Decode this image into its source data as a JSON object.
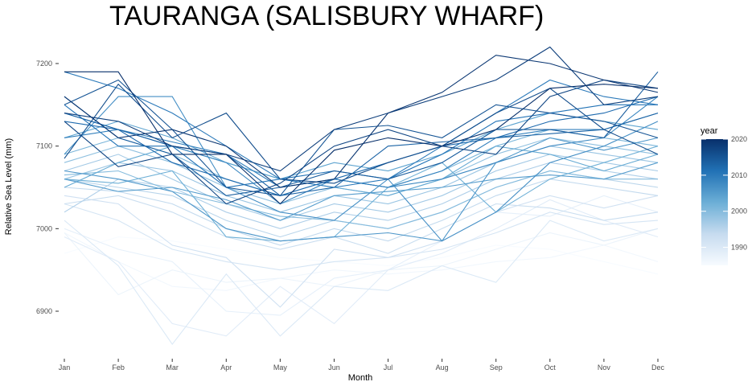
{
  "chart_data": {
    "type": "line",
    "title": "TAURANGA (SALISBURY WHARF)",
    "xlabel": "Month",
    "ylabel": "Relative Sea Level (mm)",
    "categories": [
      "Jan",
      "Feb",
      "Mar",
      "Apr",
      "May",
      "Jun",
      "Jul",
      "Aug",
      "Sep",
      "Oct",
      "Nov",
      "Dec"
    ],
    "ylim": [
      6845,
      7220
    ],
    "yticks": [
      6900,
      7000,
      7100,
      7200
    ],
    "grid": false,
    "legend": {
      "title": "year",
      "position": "right",
      "type": "colorbar",
      "range": [
        1985,
        2020
      ],
      "ticks": [
        1990,
        2000,
        2010,
        2020
      ],
      "colors": [
        "#f7fbff",
        "#c6dbef",
        "#6baed6",
        "#2171b5",
        "#08306b"
      ]
    },
    "series": [
      {
        "year": 1985,
        "values": [
          6970,
          6990,
          6985,
          6975,
          6965,
          6960,
          6955,
          6965,
          6980,
          6975,
          6960,
          6945
        ]
      },
      {
        "year": 1986,
        "values": [
          6995,
          6960,
          6930,
          6925,
          6940,
          6950,
          6945,
          6950,
          6960,
          6965,
          6980,
          6960
        ]
      },
      {
        "year": 1987,
        "values": [
          6995,
          6920,
          6950,
          6935,
          6940,
          6930,
          6950,
          6955,
          6975,
          6995,
          6980,
          7000
        ]
      },
      {
        "year": 1988,
        "values": [
          7000,
          6975,
          6960,
          6900,
          6895,
          6940,
          6950,
          6985,
          7020,
          7015,
          7040,
          7020
        ]
      },
      {
        "year": 1989,
        "values": [
          6990,
          6960,
          6885,
          6870,
          6930,
          6885,
          6950,
          6970,
          7000,
          7035,
          7010,
          6990
        ]
      },
      {
        "year": 1990,
        "values": [
          7010,
          6955,
          6860,
          6945,
          6870,
          6930,
          6925,
          6955,
          6935,
          7010,
          6985,
          7000
        ]
      },
      {
        "year": 1991,
        "values": [
          7030,
          7010,
          6975,
          6960,
          6950,
          6960,
          6965,
          6975,
          6995,
          7020,
          7005,
          7010
        ]
      },
      {
        "year": 1992,
        "values": [
          7040,
          7030,
          6980,
          6965,
          6905,
          6975,
          6965,
          6985,
          7020,
          7040,
          7025,
          7040
        ]
      },
      {
        "year": 1993,
        "values": [
          7030,
          7040,
          7020,
          6990,
          6975,
          6990,
          6970,
          7000,
          7030,
          7025,
          7010,
          7020
        ]
      },
      {
        "year": 1994,
        "values": [
          7050,
          7045,
          7030,
          7000,
          6980,
          7000,
          6985,
          7010,
          7040,
          7060,
          7050,
          7040
        ]
      },
      {
        "year": 1995,
        "values": [
          7060,
          7050,
          7040,
          7010,
          6990,
          7010,
          7000,
          7020,
          7050,
          7070,
          7060,
          7050
        ]
      },
      {
        "year": 1996,
        "values": [
          7020,
          7060,
          7050,
          7020,
          7000,
          7020,
          7010,
          7030,
          7060,
          7080,
          7070,
          7060
        ]
      },
      {
        "year": 1997,
        "values": [
          7070,
          7090,
          7060,
          7030,
          7010,
          7030,
          7020,
          7040,
          7070,
          7090,
          7080,
          7070
        ]
      },
      {
        "year": 1998,
        "values": [
          7060,
          7080,
          7070,
          7040,
          7020,
          7040,
          7030,
          7050,
          7080,
          7100,
          7090,
          7080
        ]
      },
      {
        "year": 1999,
        "values": [
          7080,
          7100,
          7080,
          7050,
          7030,
          7050,
          7040,
          7060,
          7090,
          7110,
          7100,
          7090
        ]
      },
      {
        "year": 2000,
        "values": [
          7065,
          7070,
          7045,
          7030,
          7015,
          7010,
          7000,
          7020,
          7050,
          7070,
          7060,
          7060
        ]
      },
      {
        "year": 2001,
        "values": [
          7090,
          7110,
          7090,
          7060,
          7040,
          7060,
          7050,
          7070,
          7100,
          7120,
          7110,
          7100
        ]
      },
      {
        "year": 2002,
        "values": [
          7060,
          7055,
          7070,
          6990,
          6985,
          6990,
          7050,
          7080,
          7020,
          7060,
          7080,
          7100
        ]
      },
      {
        "year": 2003,
        "values": [
          7050,
          7080,
          7100,
          7080,
          7060,
          7050,
          7040,
          7060,
          7100,
          7090,
          7070,
          7090
        ]
      },
      {
        "year": 2004,
        "values": [
          7110,
          7130,
          7110,
          7080,
          7060,
          7080,
          7070,
          7090,
          7120,
          7140,
          7130,
          7120
        ]
      },
      {
        "year": 2005,
        "values": [
          7060,
          7045,
          7050,
          7035,
          7010,
          7040,
          7045,
          7050,
          7060,
          7065,
          7060,
          7080
        ]
      },
      {
        "year": 2006,
        "values": [
          7070,
          7060,
          7045,
          7000,
          6985,
          6990,
          6995,
          6985,
          7080,
          7110,
          7095,
          7110
        ]
      },
      {
        "year": 2007,
        "values": [
          7090,
          7160,
          7160,
          7050,
          7020,
          7010,
          7060,
          6985,
          7020,
          7080,
          7100,
          7130
        ]
      },
      {
        "year": 2008,
        "values": [
          7140,
          7120,
          7100,
          7080,
          7030,
          7060,
          7050,
          7060,
          7080,
          7100,
          7110,
          7160
        ]
      },
      {
        "year": 2009,
        "values": [
          7110,
          7120,
          7105,
          7090,
          7050,
          7060,
          7050,
          7070,
          7110,
          7120,
          7120,
          7140
        ]
      },
      {
        "year": 2010,
        "values": [
          7190,
          7170,
          7140,
          7100,
          7060,
          7050,
          7060,
          7100,
          7140,
          7180,
          7160,
          7150
        ]
      },
      {
        "year": 2011,
        "values": [
          7150,
          7100,
          7100,
          7050,
          7060,
          7070,
          7060,
          7090,
          7130,
          7140,
          7150,
          7150
        ]
      },
      {
        "year": 2012,
        "values": [
          7130,
          7120,
          7080,
          7060,
          7040,
          7060,
          7080,
          7100,
          7110,
          7130,
          7140,
          7160
        ]
      },
      {
        "year": 2013,
        "values": [
          7140,
          7120,
          7100,
          7090,
          7040,
          7050,
          7100,
          7105,
          7110,
          7115,
          7120,
          7140
        ]
      },
      {
        "year": 2014,
        "values": [
          7160,
          7110,
          7090,
          7040,
          7050,
          7070,
          7060,
          7080,
          7120,
          7120,
          7110,
          7190
        ]
      },
      {
        "year": 2015,
        "values": [
          7150,
          7180,
          7120,
          7050,
          7040,
          7120,
          7125,
          7110,
          7150,
          7140,
          7130,
          7110
        ]
      },
      {
        "year": 2016,
        "values": [
          7085,
          7175,
          7110,
          7140,
          7060,
          7055,
          7080,
          7100,
          7140,
          7170,
          7120,
          7090
        ]
      },
      {
        "year": 2017,
        "values": [
          7130,
          7075,
          7090,
          7030,
          7055,
          7100,
          7120,
          7100,
          7090,
          7160,
          7180,
          7170
        ]
      },
      {
        "year": 2018,
        "values": [
          7140,
          7130,
          7100,
          7090,
          7070,
          7120,
          7140,
          7160,
          7180,
          7220,
          7150,
          7160
        ]
      },
      {
        "year": 2019,
        "values": [
          7160,
          7110,
          7120,
          7100,
          7050,
          7060,
          7140,
          7165,
          7210,
          7200,
          7180,
          7165
        ]
      },
      {
        "year": 2020,
        "values": [
          7190,
          7190,
          7090,
          7090,
          7030,
          7095,
          7110,
          7100,
          7120,
          7170,
          7175,
          7170
        ]
      }
    ]
  }
}
